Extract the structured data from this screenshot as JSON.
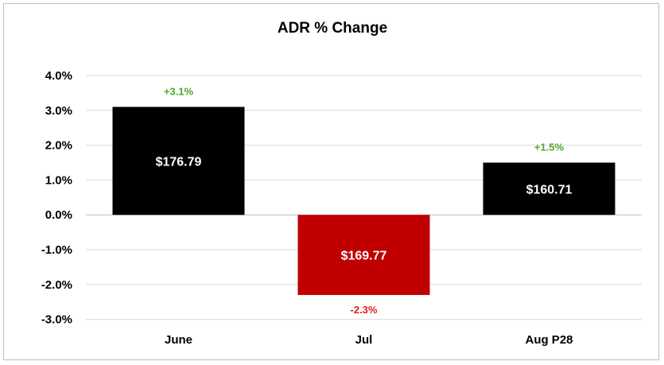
{
  "chart_data": {
    "type": "bar",
    "title": "ADR % Change",
    "categories": [
      "June",
      "Jul",
      "Aug P28"
    ],
    "values": [
      3.1,
      -2.3,
      1.5
    ],
    "value_labels": [
      "+3.1%",
      "-2.3%",
      "+1.5%"
    ],
    "bar_labels": [
      "$176.79",
      "$169.77",
      "$160.71"
    ],
    "bar_colors": [
      "#000000",
      "#c00000",
      "#000000"
    ],
    "label_colors": [
      "#4ea72e",
      "#e02020",
      "#4ea72e"
    ],
    "ylim": [
      -3.0,
      4.0
    ],
    "yticks": [
      4.0,
      3.0,
      2.0,
      1.0,
      0.0,
      -1.0,
      -2.0,
      -3.0
    ],
    "ytick_labels": [
      "4.0%",
      "3.0%",
      "2.0%",
      "1.0%",
      "0.0%",
      "-1.0%",
      "-2.0%",
      "-3.0%"
    ],
    "grid": true,
    "legend": "none",
    "xlabel": "",
    "ylabel": ""
  }
}
